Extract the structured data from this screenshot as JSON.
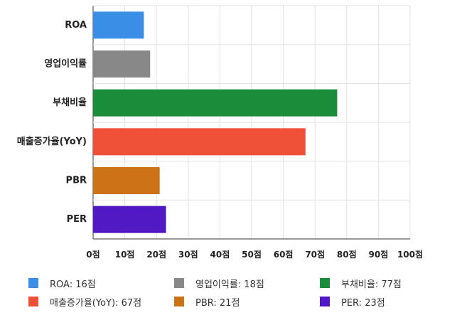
{
  "chart_data": {
    "type": "bar",
    "orientation": "horizontal",
    "categories": [
      "ROA",
      "영업이익률",
      "부채비율",
      "매출증가율(YoY)",
      "PBR",
      "PER"
    ],
    "values": [
      16,
      18,
      77,
      67,
      21,
      23
    ],
    "colors": [
      "#3a8ee6",
      "#888888",
      "#1a8c3a",
      "#ef5038",
      "#cc7318",
      "#5019c4"
    ],
    "xlim": [
      0,
      100
    ],
    "xticks": [
      "0점",
      "10점",
      "20점",
      "30점",
      "40점",
      "50점",
      "60점",
      "70점",
      "80점",
      "90점",
      "100점"
    ],
    "grid": true,
    "legend_position": "bottom",
    "legend": [
      "ROA: 16점",
      "영업이익률: 18점",
      "부채비율: 77점",
      "매출증가율(YoY): 67점",
      "PBR: 21점",
      "PER: 23점"
    ]
  }
}
